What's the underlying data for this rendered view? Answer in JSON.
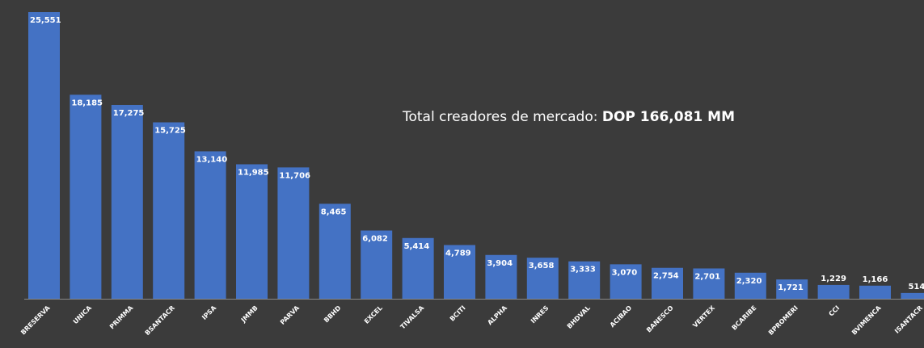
{
  "chart_data": {
    "type": "bar",
    "annotation": {
      "text": "Total creadores de mercado: ",
      "emphasis": "DOP 166,081 MM"
    },
    "categories": [
      "BRESERVA",
      "UNICA",
      "PRIMMA",
      "BSANTACR",
      "IPSA",
      "JMMB",
      "PARVA",
      "BBHD",
      "EXCEL",
      "TIVALSA",
      "BCITI",
      "ALPHA",
      "INRES",
      "BHDVAL",
      "ACIBAO",
      "BANESCO",
      "VERTEX",
      "BCARIBE",
      "BPROMERI",
      "CCI",
      "BVIMENCA",
      "ISANTACR"
    ],
    "values": [
      25551,
      18185,
      17275,
      15725,
      13140,
      11985,
      11706,
      8465,
      6082,
      5414,
      4789,
      3904,
      3658,
      3333,
      3070,
      2754,
      2701,
      2320,
      1721,
      1229,
      1166,
      514
    ],
    "value_labels": [
      "25,551",
      "18,185",
      "17,275",
      "15,725",
      "13,140",
      "11,985",
      "11,706",
      "8,465",
      "6,082",
      "5,414",
      "4,789",
      "3,904",
      "3,658",
      "3,333",
      "3,070",
      "2,754",
      "2,701",
      "2,320",
      "1,721",
      "1,229",
      "1,166",
      "514"
    ],
    "color": "#4472c4"
  }
}
